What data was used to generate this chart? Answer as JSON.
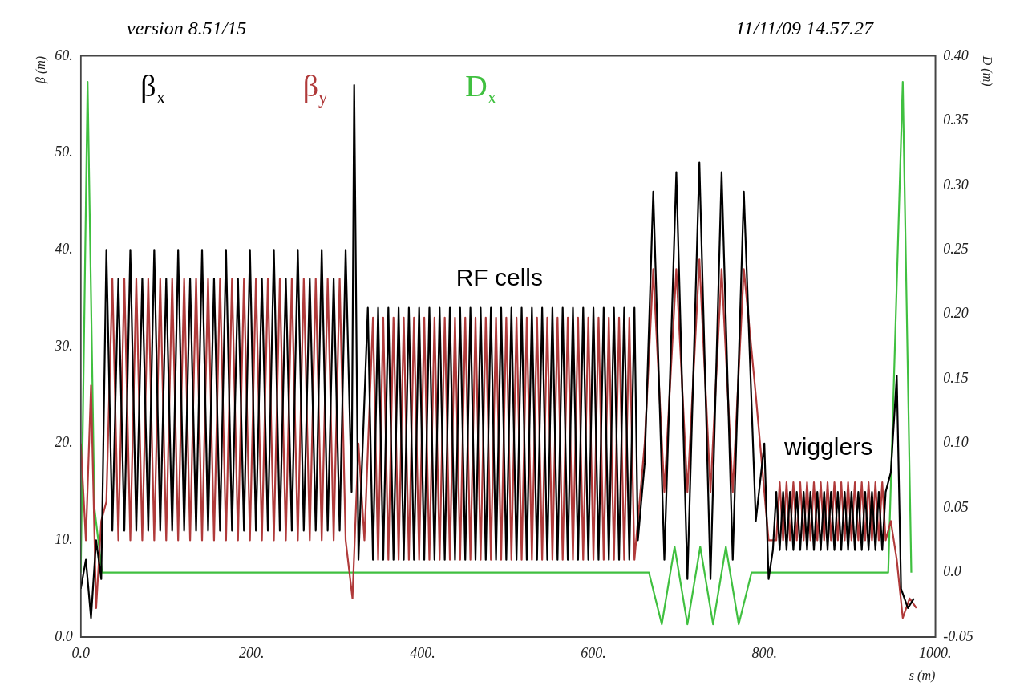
{
  "chart_data": {
    "type": "line",
    "xlabel": "s (m)",
    "ylabel": "β (m)",
    "y2label": "D (m)",
    "annotations": [
      "version 8.51/15",
      "11/11/09  14.57.27",
      "RF cells",
      "wigglers"
    ],
    "xlim": [
      0,
      1000
    ],
    "xticks": [
      {
        "value": 0,
        "label": "0.0"
      },
      {
        "value": 200,
        "label": "200."
      },
      {
        "value": 400,
        "label": "400."
      },
      {
        "value": 600,
        "label": "600."
      },
      {
        "value": 800,
        "label": "800."
      },
      {
        "value": 1000,
        "label": "1000."
      }
    ],
    "ylim": [
      0,
      60
    ],
    "yticks": [
      {
        "value": 0,
        "label": "0.0"
      },
      {
        "value": 10,
        "label": "10."
      },
      {
        "value": 20,
        "label": "20."
      },
      {
        "value": 30,
        "label": "30."
      },
      {
        "value": 40,
        "label": "40."
      },
      {
        "value": 50,
        "label": "50."
      },
      {
        "value": 60,
        "label": "60."
      }
    ],
    "y2lim": [
      -0.05,
      0.4
    ],
    "y2ticks": [
      -0.05,
      {
        "value": 0,
        "label": "0.0"
      },
      0.05,
      {
        "value": 0.1,
        "label": "0.10"
      },
      0.15,
      {
        "value": 0.2,
        "label": "0.20"
      },
      0.25,
      {
        "value": 0.3,
        "label": "0.30"
      },
      0.35,
      {
        "value": 0.4,
        "label": "0.40"
      }
    ],
    "grid": false,
    "legend": "top",
    "marker": "none",
    "line_style": "solid",
    "series": [
      {
        "name": "β$_{x}$",
        "color": "#000000",
        "x": [
          0,
          6,
          12,
          18,
          24,
          30,
          37,
          44,
          51,
          58,
          65,
          72,
          79,
          86,
          93,
          100,
          107,
          114,
          121,
          128,
          135,
          142,
          149,
          156,
          163,
          170,
          177,
          184,
          191,
          198,
          205,
          212,
          219,
          226,
          233,
          240,
          247,
          254,
          261,
          268,
          275,
          282,
          289,
          296,
          303,
          310,
          317,
          320,
          325,
          336,
          342,
          348,
          354,
          360,
          366,
          372,
          378,
          384,
          390,
          396,
          402,
          408,
          414,
          420,
          426,
          432,
          438,
          444,
          450,
          456,
          462,
          468,
          474,
          480,
          486,
          492,
          498,
          504,
          510,
          516,
          522,
          528,
          534,
          540,
          546,
          552,
          558,
          564,
          570,
          576,
          582,
          588,
          594,
          600,
          606,
          612,
          618,
          624,
          630,
          636,
          642,
          648,
          652,
          660,
          670,
          683,
          697,
          710,
          724,
          737,
          750,
          763,
          776,
          790,
          800,
          805,
          810,
          814,
          818,
          822,
          826,
          830,
          834,
          838,
          842,
          846,
          850,
          854,
          858,
          862,
          866,
          870,
          874,
          878,
          882,
          886,
          890,
          894,
          898,
          902,
          906,
          910,
          914,
          918,
          922,
          926,
          930,
          934,
          938,
          942,
          948,
          955,
          960,
          968,
          975
        ],
        "values": [
          5,
          8,
          2,
          10,
          6,
          40,
          11,
          37,
          11,
          40,
          11,
          37,
          11,
          40,
          11,
          37,
          11,
          40,
          11,
          37,
          11,
          40,
          11,
          37,
          11,
          40,
          11,
          37,
          11,
          40,
          11,
          37,
          11,
          40,
          11,
          37,
          11,
          40,
          11,
          37,
          11,
          40,
          11,
          37,
          11,
          40,
          15,
          57,
          8,
          34,
          8,
          34,
          8,
          34,
          8,
          34,
          8,
          34,
          8,
          34,
          8,
          34,
          8,
          34,
          8,
          34,
          8,
          34,
          8,
          34,
          8,
          34,
          8,
          34,
          8,
          34,
          8,
          34,
          8,
          34,
          8,
          34,
          8,
          34,
          8,
          34,
          8,
          34,
          8,
          34,
          8,
          34,
          8,
          34,
          8,
          34,
          8,
          34,
          8,
          34,
          8,
          34,
          10,
          18,
          46,
          8,
          48,
          6,
          49,
          6,
          48,
          8,
          46,
          12,
          20,
          6,
          9,
          15,
          9,
          15,
          9,
          15,
          9,
          15,
          9,
          15,
          9,
          15,
          9,
          15,
          9,
          15,
          9,
          15,
          9,
          15,
          9,
          15,
          9,
          15,
          9,
          15,
          9,
          15,
          9,
          15,
          9,
          15,
          9,
          15,
          17,
          27,
          5,
          3,
          4
        ]
      },
      {
        "name": "β$_{y}$",
        "color": "#b03a3a",
        "x": [
          0,
          6,
          12,
          18,
          24,
          30,
          37,
          44,
          51,
          58,
          65,
          72,
          79,
          86,
          93,
          100,
          107,
          114,
          121,
          128,
          135,
          142,
          149,
          156,
          163,
          170,
          177,
          184,
          191,
          198,
          205,
          212,
          219,
          226,
          233,
          240,
          247,
          254,
          261,
          268,
          275,
          282,
          289,
          296,
          303,
          310,
          318,
          325,
          332,
          342,
          348,
          354,
          360,
          366,
          372,
          378,
          384,
          390,
          396,
          402,
          408,
          414,
          420,
          426,
          432,
          438,
          444,
          450,
          456,
          462,
          468,
          474,
          480,
          486,
          492,
          498,
          504,
          510,
          516,
          522,
          528,
          534,
          540,
          546,
          552,
          558,
          564,
          570,
          576,
          582,
          588,
          594,
          600,
          606,
          612,
          618,
          624,
          630,
          636,
          642,
          648,
          660,
          670,
          683,
          697,
          710,
          724,
          737,
          750,
          763,
          776,
          790,
          805,
          814,
          818,
          822,
          826,
          830,
          834,
          838,
          842,
          846,
          850,
          854,
          858,
          862,
          866,
          870,
          874,
          878,
          882,
          886,
          890,
          894,
          898,
          902,
          906,
          910,
          914,
          918,
          922,
          926,
          930,
          934,
          938,
          942,
          948,
          955,
          962,
          970,
          978
        ],
        "values": [
          20,
          10,
          26,
          3,
          12,
          14,
          37,
          10,
          37,
          10,
          37,
          10,
          37,
          10,
          37,
          10,
          37,
          10,
          37,
          10,
          37,
          10,
          37,
          10,
          37,
          10,
          37,
          10,
          37,
          10,
          37,
          10,
          37,
          10,
          37,
          10,
          37,
          10,
          37,
          10,
          37,
          10,
          37,
          10,
          37,
          10,
          4,
          20,
          10,
          33,
          8,
          33,
          8,
          33,
          8,
          33,
          8,
          33,
          8,
          33,
          8,
          33,
          8,
          33,
          8,
          33,
          8,
          33,
          8,
          33,
          8,
          33,
          8,
          33,
          8,
          33,
          8,
          33,
          8,
          33,
          8,
          33,
          8,
          33,
          8,
          33,
          8,
          33,
          8,
          33,
          8,
          33,
          8,
          33,
          8,
          33,
          8,
          33,
          8,
          33,
          8,
          20,
          38,
          15,
          38,
          15,
          39,
          15,
          38,
          15,
          38,
          25,
          10,
          10,
          16,
          10,
          16,
          10,
          16,
          10,
          16,
          10,
          16,
          10,
          16,
          10,
          16,
          10,
          16,
          10,
          16,
          10,
          16,
          10,
          16,
          10,
          16,
          10,
          16,
          10,
          16,
          10,
          16,
          10,
          16,
          10,
          12,
          8,
          2,
          4,
          3
        ]
      },
      {
        "name": "D$_{x}$",
        "color": "#40c040",
        "axis": "y2",
        "x": [
          0,
          8,
          16,
          25,
          665,
          680,
          695,
          710,
          725,
          740,
          755,
          770,
          785,
          945,
          962,
          972
        ],
        "values": [
          0,
          0.38,
          0.05,
          0,
          0,
          -0.04,
          0.02,
          -0.04,
          0.02,
          -0.04,
          0.02,
          -0.04,
          0,
          0,
          0.38,
          0
        ]
      }
    ]
  }
}
